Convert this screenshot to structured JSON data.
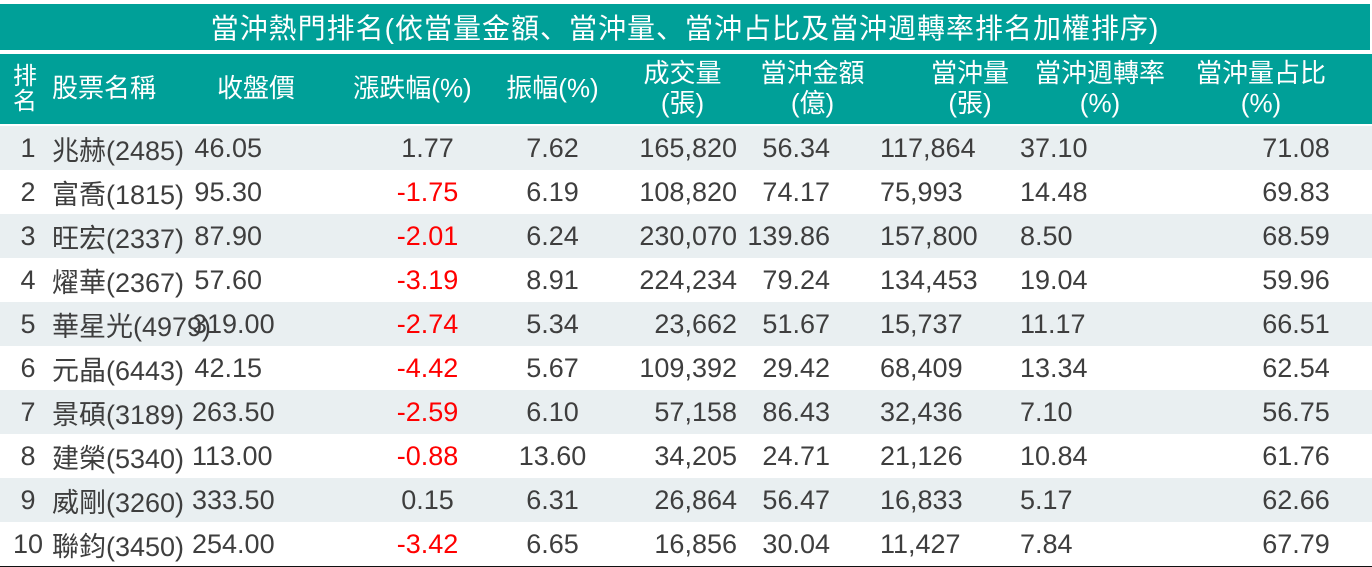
{
  "colors": {
    "header_teal": "#00A098",
    "row_stripe": "#E9EFF1",
    "text_dark": "#3E3E3E",
    "negative_red": "#FF0000",
    "header_text": "#FFFFFF"
  },
  "table": {
    "title": "當沖熱門排名(依當量金額、當沖量、當沖占比及當沖週轉率排名加權排序)",
    "columns": [
      {
        "id": "rank",
        "label": "排名",
        "line1": "排",
        "line2": "名"
      },
      {
        "id": "name",
        "label": "股票名稱"
      },
      {
        "id": "close",
        "label": "收盤價"
      },
      {
        "id": "change",
        "label": "漲跌幅(%)"
      },
      {
        "id": "amplitude",
        "label": "振幅(%)"
      },
      {
        "id": "volume",
        "line1": "成交量",
        "line2": "(張)"
      },
      {
        "id": "amount",
        "line1": "當沖金額",
        "line2": "(億)"
      },
      {
        "id": "dt_volume",
        "line1": "當沖量",
        "line2": "(張)"
      },
      {
        "id": "turnover",
        "line1": "當沖週轉率",
        "line2": "(%)"
      },
      {
        "id": "ratio",
        "line1": "當沖量占比",
        "line2": "(%)"
      }
    ],
    "rows": [
      {
        "rank": "1",
        "name": "兆赫(2485)",
        "close": "46.05",
        "change": "1.77",
        "amplitude": "7.62",
        "volume": "165,820",
        "amount": "56.34",
        "dt_volume": "117,864",
        "turnover": "37.10",
        "ratio": "71.08"
      },
      {
        "rank": "2",
        "name": "富喬(1815)",
        "close": "95.30",
        "change": "-1.75",
        "amplitude": "6.19",
        "volume": "108,820",
        "amount": "74.17",
        "dt_volume": "75,993",
        "turnover": "14.48",
        "ratio": "69.83"
      },
      {
        "rank": "3",
        "name": "旺宏(2337)",
        "close": "87.90",
        "change": "-2.01",
        "amplitude": "6.24",
        "volume": "230,070",
        "amount": "139.86",
        "dt_volume": "157,800",
        "turnover": "8.50",
        "ratio": "68.59"
      },
      {
        "rank": "4",
        "name": "燿華(2367)",
        "close": "57.60",
        "change": "-3.19",
        "amplitude": "8.91",
        "volume": "224,234",
        "amount": "79.24",
        "dt_volume": "134,453",
        "turnover": "19.04",
        "ratio": "59.96"
      },
      {
        "rank": "5",
        "name": "華星光(4979)",
        "close": "319.00",
        "change": "-2.74",
        "amplitude": "5.34",
        "volume": "23,662",
        "amount": "51.67",
        "dt_volume": "15,737",
        "turnover": "11.17",
        "ratio": "66.51"
      },
      {
        "rank": "6",
        "name": "元晶(6443)",
        "close": "42.15",
        "change": "-4.42",
        "amplitude": "5.67",
        "volume": "109,392",
        "amount": "29.42",
        "dt_volume": "68,409",
        "turnover": "13.34",
        "ratio": "62.54"
      },
      {
        "rank": "7",
        "name": "景碩(3189)",
        "close": "263.50",
        "change": "-2.59",
        "amplitude": "6.10",
        "volume": "57,158",
        "amount": "86.43",
        "dt_volume": "32,436",
        "turnover": "7.10",
        "ratio": "56.75"
      },
      {
        "rank": "8",
        "name": "建榮(5340)",
        "close": "113.00",
        "change": "-0.88",
        "amplitude": "13.60",
        "volume": "34,205",
        "amount": "24.71",
        "dt_volume": "21,126",
        "turnover": "10.84",
        "ratio": "61.76"
      },
      {
        "rank": "9",
        "name": "威剛(3260)",
        "close": "333.50",
        "change": "0.15",
        "amplitude": "6.31",
        "volume": "26,864",
        "amount": "56.47",
        "dt_volume": "16,833",
        "turnover": "5.17",
        "ratio": "62.66"
      },
      {
        "rank": "10",
        "name": "聯鈞(3450)",
        "close": "254.00",
        "change": "-3.42",
        "amplitude": "6.65",
        "volume": "16,856",
        "amount": "30.04",
        "dt_volume": "11,427",
        "turnover": "7.84",
        "ratio": "67.79"
      }
    ]
  }
}
